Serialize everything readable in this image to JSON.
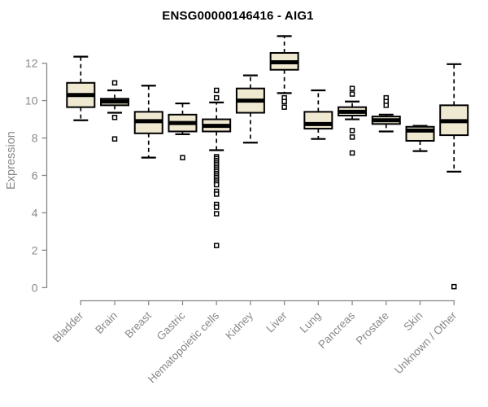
{
  "chart_data": {
    "type": "boxplot",
    "title": "ENSG00000146416 - AIG1",
    "ylabel": "Expression",
    "xlabel": "",
    "ylim": [
      0,
      13.6
    ],
    "yticks": [
      0,
      2,
      4,
      6,
      8,
      10,
      12
    ],
    "grid": false,
    "legend": "none",
    "categories": [
      "Bladder",
      "Brain",
      "Breast",
      "Gastric",
      "Hematopoietic cells",
      "Kidney",
      "Liver",
      "Lung",
      "Pancreas",
      "Prostate",
      "Skin",
      "Unknown / Other"
    ],
    "boxes": [
      {
        "category": "Bladder",
        "whisker_low": 8.95,
        "q1": 9.65,
        "median": 10.3,
        "q3": 10.95,
        "whisker_high": 12.35,
        "outliers": []
      },
      {
        "category": "Brain",
        "whisker_low": 9.35,
        "q1": 9.75,
        "median": 9.95,
        "q3": 10.1,
        "whisker_high": 10.55,
        "outliers": [
          10.95,
          9.1,
          7.95
        ]
      },
      {
        "category": "Breast",
        "whisker_low": 6.95,
        "q1": 8.25,
        "median": 8.9,
        "q3": 9.4,
        "whisker_high": 10.8,
        "outliers": []
      },
      {
        "category": "Gastric",
        "whisker_low": 8.2,
        "q1": 8.35,
        "median": 8.8,
        "q3": 9.25,
        "whisker_high": 9.85,
        "outliers": [
          6.95
        ]
      },
      {
        "category": "Hematopoietic cells",
        "whisker_low": 7.35,
        "q1": 8.35,
        "median": 8.65,
        "q3": 9.0,
        "whisker_high": 9.9,
        "outliers": [
          10.55,
          10.15,
          7.0,
          6.9,
          6.8,
          6.7,
          6.6,
          6.5,
          6.4,
          6.3,
          6.2,
          6.1,
          6.0,
          5.9,
          5.8,
          5.7,
          5.6,
          5.5,
          5.15,
          5.0,
          4.45,
          4.3,
          3.95,
          2.25
        ]
      },
      {
        "category": "Kidney",
        "whisker_low": 7.75,
        "q1": 9.35,
        "median": 10.0,
        "q3": 10.65,
        "whisker_high": 11.35,
        "outliers": []
      },
      {
        "category": "Liver",
        "whisker_low": 10.4,
        "q1": 11.65,
        "median": 12.05,
        "q3": 12.55,
        "whisker_high": 13.45,
        "outliers": [
          10.15,
          9.95,
          9.65
        ]
      },
      {
        "category": "Lung",
        "whisker_low": 7.95,
        "q1": 8.5,
        "median": 8.75,
        "q3": 9.4,
        "whisker_high": 10.55,
        "outliers": []
      },
      {
        "category": "Pancreas",
        "whisker_low": 9.0,
        "q1": 9.2,
        "median": 9.4,
        "q3": 9.65,
        "whisker_high": 9.95,
        "outliers": [
          10.65,
          10.35,
          8.4,
          8.05,
          7.2
        ]
      },
      {
        "category": "Prostate",
        "whisker_low": 8.35,
        "q1": 8.75,
        "median": 8.95,
        "q3": 9.15,
        "whisker_high": 9.25,
        "outliers": [
          10.15,
          9.95,
          9.75
        ]
      },
      {
        "category": "Skin",
        "whisker_low": 7.3,
        "q1": 7.85,
        "median": 8.4,
        "q3": 8.6,
        "whisker_high": 8.65,
        "outliers": []
      },
      {
        "category": "Unknown / Other",
        "whisker_low": 6.2,
        "q1": 8.15,
        "median": 8.9,
        "q3": 9.75,
        "whisker_high": 11.95,
        "outliers": [
          0.05
        ]
      }
    ],
    "colors": {
      "box_fill": "#f0e9d2",
      "box_border": "#000000",
      "median": "#000000",
      "whisker": "#000000",
      "outlier_stroke": "#000000",
      "outlier_fill": "#ffffff",
      "axis": "#888888",
      "title": "#000000",
      "background": "#ffffff"
    }
  }
}
